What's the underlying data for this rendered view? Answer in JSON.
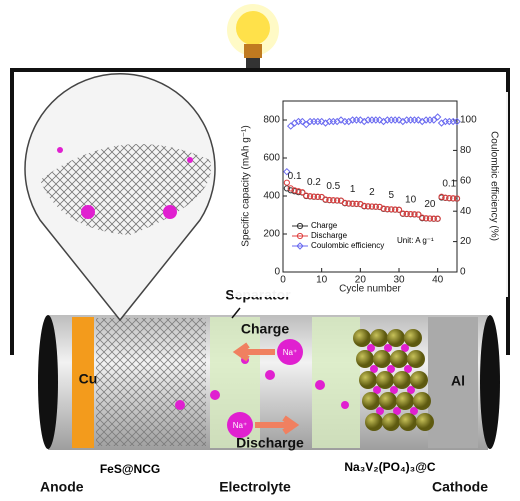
{
  "labels": {
    "anode": "Anode",
    "cu": "Cu",
    "anode_material": "FeS@NCG",
    "separator": "Separator",
    "charge": "Charge",
    "discharge": "Discharge",
    "ion": "Na⁺",
    "electrolyte": "Electrolyte",
    "cathode_material": "Na₃V₂(PO₄)₃@C",
    "al": "Al",
    "cathode": "Cathode"
  },
  "chart_data": {
    "type": "scatter",
    "x_label": "Cycle number",
    "y_label": "Specific capacity (mAh g⁻¹)",
    "y2_label": "Coulombic efficiency (%)",
    "annotation": "Unit: A g⁻¹",
    "rate_labels": [
      "0.1",
      "0.2",
      "0.5",
      "1",
      "2",
      "5",
      "10",
      "20",
      "0.1"
    ],
    "x": [
      1,
      2,
      3,
      4,
      5,
      6,
      7,
      8,
      9,
      10,
      11,
      12,
      13,
      14,
      15,
      16,
      17,
      18,
      19,
      20,
      21,
      22,
      23,
      24,
      25,
      26,
      27,
      28,
      29,
      30,
      31,
      32,
      33,
      34,
      35,
      36,
      37,
      38,
      39,
      40,
      41,
      42,
      43,
      44,
      45
    ],
    "xlim": [
      0,
      45
    ],
    "xticks": [
      0,
      10,
      20,
      30,
      40
    ],
    "ylim": [
      0,
      900
    ],
    "yticks": [
      0,
      200,
      400,
      600,
      800
    ],
    "y2lim": [
      0,
      112.5
    ],
    "y2ticks": [
      0,
      20,
      40,
      60,
      80,
      100
    ],
    "series": [
      {
        "name": "Charge",
        "color": "#333333",
        "marker": "circle",
        "values": [
          440,
          430,
          425,
          420,
          418,
          400,
          398,
          396,
          395,
          394,
          380,
          378,
          377,
          376,
          375,
          362,
          360,
          359,
          358,
          357,
          346,
          345,
          344,
          343,
          342,
          332,
          330,
          329,
          328,
          327,
          306,
          305,
          304,
          303,
          302,
          283,
          282,
          281,
          280,
          280,
          392,
          390,
          388,
          387,
          386
        ]
      },
      {
        "name": "Discharge",
        "color": "#e04040",
        "marker": "circle",
        "values": [
          470,
          440,
          430,
          425,
          420,
          402,
          399,
          397,
          396,
          395,
          382,
          379,
          378,
          377,
          376,
          364,
          361,
          360,
          359,
          358,
          348,
          346,
          345,
          344,
          343,
          334,
          331,
          330,
          329,
          328,
          308,
          306,
          305,
          304,
          303,
          286,
          283,
          282,
          281,
          281,
          396,
          391,
          389,
          388,
          387
        ]
      },
      {
        "name": "Coulombic efficiency",
        "color": "#6a6af0",
        "marker": "diamond",
        "axis": "y2",
        "values": [
          66,
          96,
          98,
          99,
          99,
          97,
          99,
          99,
          99,
          99,
          98,
          99,
          99,
          99,
          100,
          99,
          99,
          100,
          100,
          100,
          99,
          100,
          100,
          100,
          100,
          99,
          100,
          100,
          100,
          100,
          99,
          100,
          100,
          100,
          100,
          99,
          100,
          100,
          100,
          102,
          98,
          99,
          99,
          99,
          99
        ]
      }
    ]
  }
}
